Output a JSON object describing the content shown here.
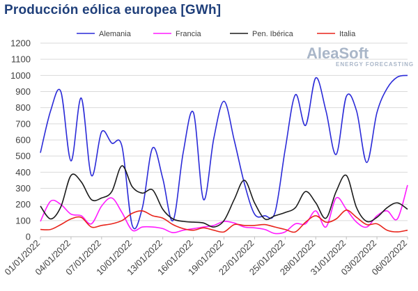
{
  "chart_data": {
    "type": "line",
    "title": "Producción eólica europea [GWh]",
    "xlabel": "",
    "ylabel": "",
    "ylim": [
      0,
      1200
    ],
    "yticks": [
      0,
      100,
      200,
      300,
      400,
      500,
      600,
      700,
      800,
      900,
      1000,
      1100,
      1200
    ],
    "grid": true,
    "legend_position": "top",
    "x": [
      "01/01/2022",
      "02/01/2022",
      "03/01/2022",
      "04/01/2022",
      "05/01/2022",
      "06/01/2022",
      "07/01/2022",
      "08/01/2022",
      "09/01/2022",
      "10/01/2022",
      "11/01/2022",
      "12/01/2022",
      "13/01/2022",
      "14/01/2022",
      "15/01/2022",
      "16/01/2022",
      "17/01/2022",
      "18/01/2022",
      "19/01/2022",
      "20/01/2022",
      "21/01/2022",
      "22/01/2022",
      "23/01/2022",
      "24/01/2022",
      "25/01/2022",
      "26/01/2022",
      "27/01/2022",
      "28/01/2022",
      "29/01/2022",
      "30/01/2022",
      "31/01/2022",
      "01/02/2022",
      "02/02/2022",
      "03/02/2022",
      "04/02/2022",
      "05/02/2022",
      "06/02/2022"
    ],
    "xtick_labels": [
      "01/01/2022",
      "04/01/2022",
      "07/01/2022",
      "10/01/2022",
      "13/01/2022",
      "16/01/2022",
      "19/01/2022",
      "22/01/2022",
      "25/01/2022",
      "28/01/2022",
      "31/01/2022",
      "03/02/2022",
      "06/02/2022"
    ],
    "series": [
      {
        "name": "Alemania",
        "color": "#2a2ad8",
        "values": [
          520,
          780,
          900,
          470,
          860,
          380,
          650,
          580,
          560,
          70,
          180,
          550,
          360,
          100,
          520,
          770,
          230,
          610,
          840,
          600,
          330,
          140,
          130,
          150,
          540,
          880,
          690,
          985,
          780,
          510,
          870,
          780,
          460,
          770,
          920,
          990,
          1000
        ]
      },
      {
        "name": "Francia",
        "color": "#ff1aff",
        "values": [
          95,
          220,
          200,
          140,
          130,
          80,
          190,
          240,
          150,
          40,
          60,
          60,
          50,
          25,
          40,
          50,
          60,
          70,
          95,
          85,
          60,
          55,
          45,
          20,
          30,
          80,
          80,
          160,
          60,
          240,
          170,
          90,
          60,
          130,
          160,
          110,
          320
        ]
      },
      {
        "name": "Pen. Ibérica",
        "color": "#1a1a1a",
        "values": [
          190,
          110,
          185,
          380,
          340,
          230,
          240,
          280,
          440,
          310,
          270,
          290,
          170,
          110,
          95,
          90,
          85,
          60,
          100,
          230,
          350,
          210,
          110,
          130,
          150,
          180,
          280,
          210,
          115,
          280,
          380,
          180,
          95,
          120,
          180,
          210,
          170
        ]
      },
      {
        "name": "Italia",
        "color": "#e8231a",
        "values": [
          45,
          45,
          75,
          110,
          120,
          60,
          70,
          80,
          100,
          145,
          160,
          130,
          115,
          75,
          50,
          40,
          55,
          40,
          30,
          75,
          70,
          70,
          75,
          60,
          45,
          30,
          90,
          130,
          90,
          110,
          165,
          120,
          75,
          80,
          40,
          30,
          40
        ]
      }
    ]
  },
  "logo": {
    "name": "AleaSoft",
    "sub": "ENERGY FORECASTING"
  }
}
